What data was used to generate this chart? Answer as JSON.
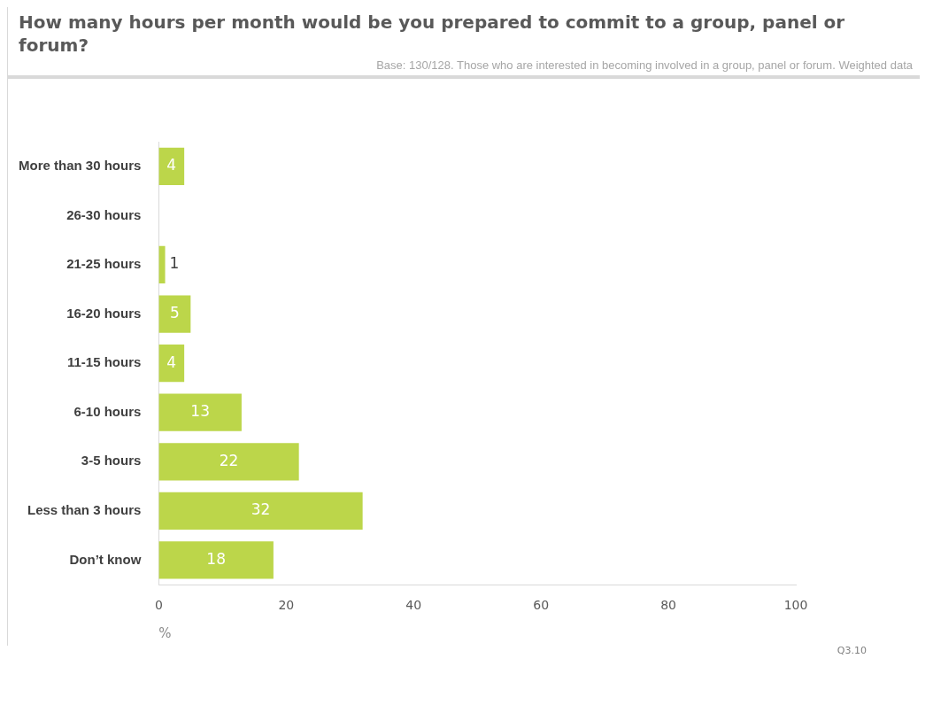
{
  "chart_data": {
    "type": "bar",
    "orientation": "horizontal",
    "title": "How many hours per month would be you prepared to commit to a group, panel or forum?",
    "subtitle": "Base: 130/128. Those who are interested in becoming involved in a group, panel or forum. Weighted data",
    "xlabel": "%",
    "annotations": [
      "Q3.10"
    ],
    "categories": [
      "More than 30 hours",
      "26-30 hours",
      "21-25 hours",
      "16-20 hours",
      "11-15 hours",
      "6-10 hours",
      "3-5 hours",
      "Less than 3 hours",
      "Don’t know"
    ],
    "values": [
      4,
      0,
      1,
      5,
      4,
      13,
      22,
      32,
      18
    ],
    "value_labels": [
      "4",
      null,
      "1",
      "5",
      "4",
      "13",
      "22",
      "32",
      "18"
    ],
    "color": "#bcd64a",
    "xlim": [
      0,
      100
    ],
    "xticks": [
      0,
      20,
      40,
      60,
      80,
      100
    ],
    "grid": false,
    "legend": false
  }
}
